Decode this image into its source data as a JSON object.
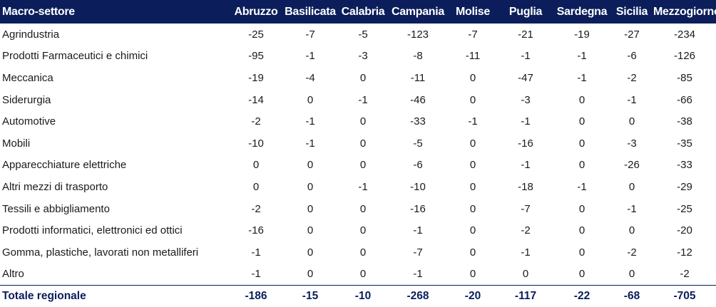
{
  "table": {
    "headers": [
      "Macro-settore",
      "Abruzzo",
      "Basilicata",
      "Calabria",
      "Campania",
      "Molise",
      "Puglia",
      "Sardegna",
      "Sicilia",
      "Mezzogiorno"
    ],
    "rows": [
      {
        "label": "Agrindustria",
        "values": [
          "-25",
          "-7",
          "-5",
          "-123",
          "-7",
          "-21",
          "-19",
          "-27",
          "-234"
        ]
      },
      {
        "label": "Prodotti Farmaceutici e chimici",
        "values": [
          "-95",
          "-1",
          "-3",
          "-8",
          "-11",
          "-1",
          "-1",
          "-6",
          "-126"
        ]
      },
      {
        "label": "Meccanica",
        "values": [
          "-19",
          "-4",
          "0",
          "-11",
          "0",
          "-47",
          "-1",
          "-2",
          "-85"
        ]
      },
      {
        "label": "Siderurgia",
        "values": [
          "-14",
          "0",
          "-1",
          "-46",
          "0",
          "-3",
          "0",
          "-1",
          "-66"
        ]
      },
      {
        "label": "Automotive",
        "values": [
          "-2",
          "-1",
          "0",
          "-33",
          "-1",
          "-1",
          "0",
          "0",
          "-38"
        ]
      },
      {
        "label": "Mobili",
        "values": [
          "-10",
          "-1",
          "0",
          "-5",
          "0",
          "-16",
          "0",
          "-3",
          "-35"
        ]
      },
      {
        "label": "Apparecchiature elettriche",
        "values": [
          "0",
          "0",
          "0",
          "-6",
          "0",
          "-1",
          "0",
          "-26",
          "-33"
        ]
      },
      {
        "label": "Altri mezzi di trasporto",
        "values": [
          "0",
          "0",
          "-1",
          "-10",
          "0",
          "-18",
          "-1",
          "0",
          "-29"
        ]
      },
      {
        "label": "Tessili e abbigliamento",
        "values": [
          "-2",
          "0",
          "0",
          "-16",
          "0",
          "-7",
          "0",
          "-1",
          "-25"
        ]
      },
      {
        "label": "Prodotti informatici, elettronici ed ottici",
        "values": [
          "-16",
          "0",
          "0",
          "-1",
          "0",
          "-2",
          "0",
          "0",
          "-20"
        ]
      },
      {
        "label": "Gomma, plastiche, lavorati non metalliferi",
        "values": [
          "-1",
          "0",
          "0",
          "-7",
          "0",
          "-1",
          "0",
          "-2",
          "-12"
        ]
      },
      {
        "label": "Altro",
        "values": [
          "-1",
          "0",
          "0",
          "-1",
          "0",
          "0",
          "0",
          "0",
          "-2"
        ]
      }
    ],
    "total": {
      "label": "Totale regionale",
      "values": [
        "-186",
        "-15",
        "-10",
        "-268",
        "-20",
        "-117",
        "-22",
        "-68",
        "-705"
      ]
    }
  },
  "colors": {
    "header_bg": "#0b1e5b",
    "header_text": "#ffffff",
    "total_text": "#0b1e5b"
  }
}
